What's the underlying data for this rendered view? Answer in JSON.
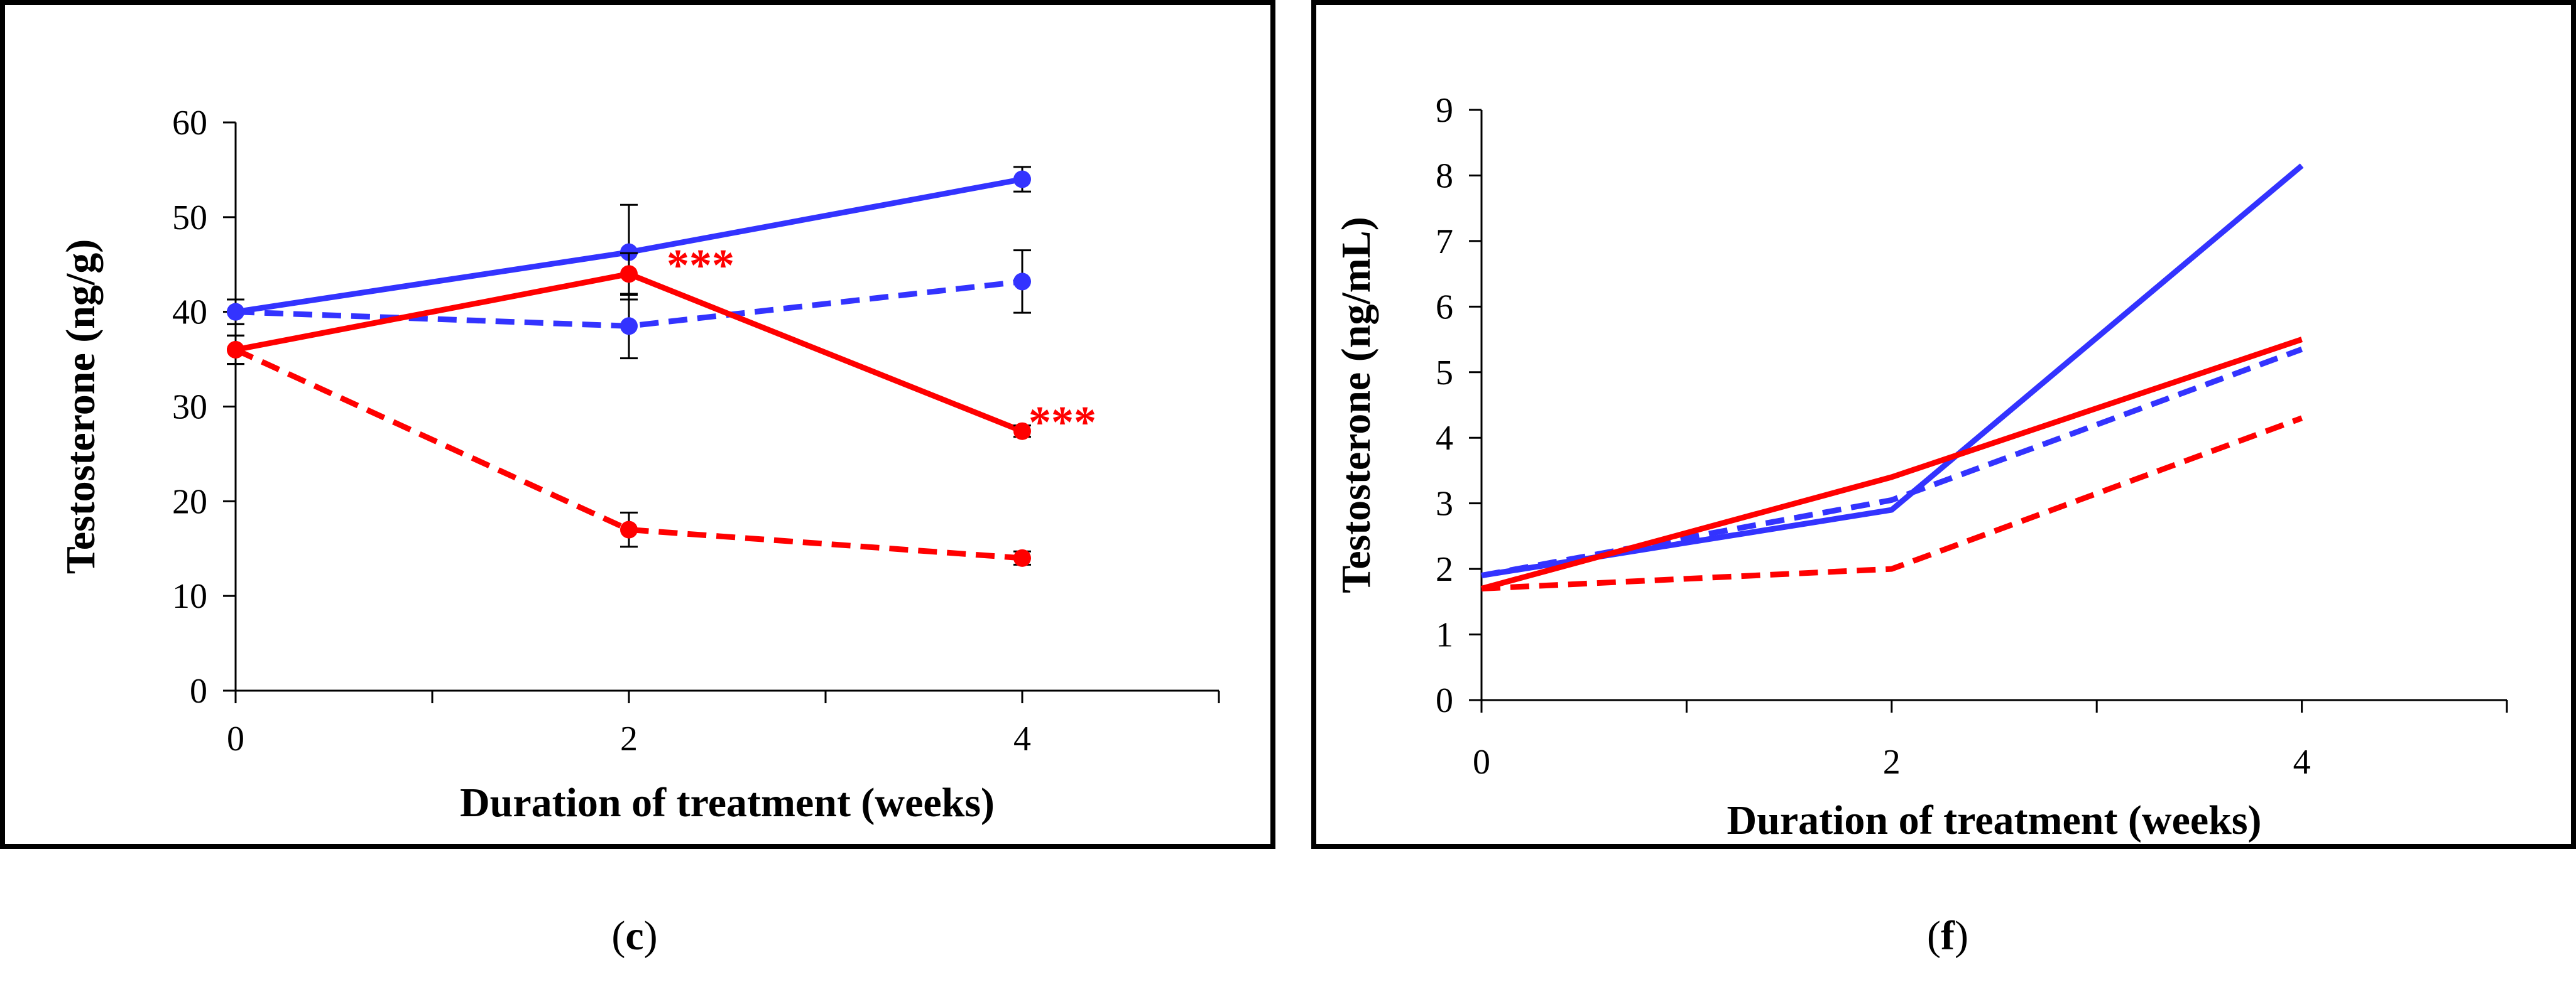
{
  "colors": {
    "red": "#ff0000",
    "blue": "#3333ff",
    "black": "#000000"
  },
  "chart_data": [
    {
      "type": "line",
      "panel_label": "c",
      "xlabel": "Duration of treatment (weeks)",
      "ylabel": "Testosterone (ng/g)",
      "xlim": [
        0,
        5
      ],
      "ylim": [
        0,
        60
      ],
      "xticks": [
        0,
        1,
        2,
        3,
        4,
        5
      ],
      "xtick_labels": [
        "0",
        "",
        "2",
        "",
        "4",
        ""
      ],
      "yticks": [
        0,
        10,
        20,
        30,
        40,
        50,
        60
      ],
      "ytick_labels": [
        "0",
        "10",
        "20",
        "30",
        "40",
        "50",
        "60"
      ],
      "markers": true,
      "series": [
        {
          "name": "blue-solid",
          "color": "blue",
          "dash": "solid",
          "x": [
            0,
            2,
            4
          ],
          "y": [
            40,
            46.3,
            54
          ],
          "err": [
            1.3,
            5,
            1.3
          ]
        },
        {
          "name": "blue-dashed",
          "color": "blue",
          "dash": "dashed",
          "x": [
            0,
            2,
            4
          ],
          "y": [
            40,
            38.5,
            43.2
          ],
          "err": [
            1.3,
            3.4,
            3.3
          ]
        },
        {
          "name": "red-solid",
          "color": "red",
          "dash": "solid",
          "x": [
            0,
            2,
            4
          ],
          "y": [
            36,
            44,
            27.4
          ],
          "err": [
            1.5,
            2.2,
            0.6
          ]
        },
        {
          "name": "red-dashed",
          "color": "red",
          "dash": "dashed",
          "x": [
            0,
            2,
            4
          ],
          "y": [
            36,
            17,
            14
          ],
          "err": [
            1.5,
            1.8,
            0.7
          ]
        }
      ],
      "annotations": [
        {
          "text": "***",
          "x": 2,
          "y": 44,
          "color": "red"
        },
        {
          "text": "***",
          "x": 4,
          "y": 27.4,
          "color": "red"
        }
      ]
    },
    {
      "type": "line",
      "panel_label": "f",
      "xlabel": "Duration of treatment (weeks)",
      "ylabel": "Testosterone (ng/mL)",
      "xlim": [
        0,
        5
      ],
      "ylim": [
        0,
        9
      ],
      "xticks": [
        0,
        1,
        2,
        3,
        4,
        5
      ],
      "xtick_labels": [
        "0",
        "",
        "2",
        "",
        "4",
        ""
      ],
      "yticks": [
        0,
        1,
        2,
        3,
        4,
        5,
        6,
        7,
        8,
        9
      ],
      "ytick_labels": [
        "0",
        "1",
        "2",
        "3",
        "4",
        "5",
        "6",
        "7",
        "8",
        "9"
      ],
      "markers": false,
      "series": [
        {
          "name": "blue-solid",
          "color": "blue",
          "dash": "solid",
          "x": [
            0,
            2,
            4
          ],
          "y": [
            1.9,
            2.9,
            8.15
          ]
        },
        {
          "name": "blue-dashed",
          "color": "blue",
          "dash": "dashed",
          "x": [
            0,
            2,
            4
          ],
          "y": [
            1.9,
            3.05,
            5.35
          ]
        },
        {
          "name": "red-solid",
          "color": "red",
          "dash": "solid",
          "x": [
            0,
            2,
            4
          ],
          "y": [
            1.7,
            3.4,
            5.5
          ]
        },
        {
          "name": "red-dashed",
          "color": "red",
          "dash": "dashed",
          "x": [
            0,
            2,
            4
          ],
          "y": [
            1.7,
            2.0,
            4.3
          ]
        }
      ],
      "annotations": []
    }
  ]
}
